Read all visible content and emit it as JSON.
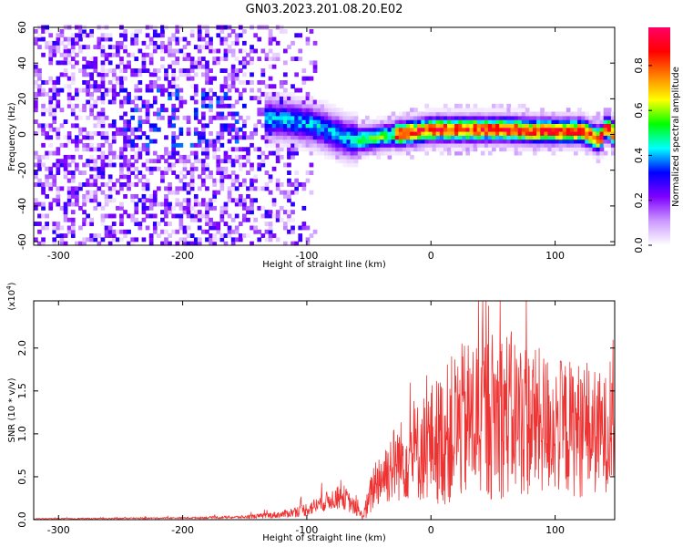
{
  "title": "GN03.2023.201.08.20.E02",
  "chart_data": [
    {
      "type": "heatmap",
      "xlabel": "Height of straight line (km)",
      "ylabel": "Frequency (Hz)",
      "xlim": [
        -320,
        148
      ],
      "ylim": [
        -62,
        60
      ],
      "xticks": [
        -300,
        -200,
        -100,
        0,
        100
      ],
      "yticks": [
        -60,
        -40,
        -20,
        0,
        20,
        40,
        60
      ],
      "colorbar": {
        "label": "Normalized spectral amplitude",
        "range": [
          0.0,
          0.97
        ],
        "ticks": [
          0.0,
          0.2,
          0.4,
          0.6,
          0.8
        ],
        "colormap": [
          "#ffffff",
          "#cc99ff",
          "#7f00ff",
          "#0000ff",
          "#00ffff",
          "#00ff00",
          "#ffff00",
          "#ff8000",
          "#ff0000",
          "#ff0066"
        ]
      },
      "ridge": {
        "description": "dominant frequency trace",
        "x": [
          -130,
          -115,
          -100,
          -90,
          -80,
          -70,
          -60,
          -50,
          -40,
          -30,
          -20,
          -10,
          0,
          20,
          40,
          60,
          80,
          100,
          120,
          135,
          140,
          145
        ],
        "y": [
          8,
          7,
          5,
          3,
          0,
          -3,
          -4,
          -3,
          -2,
          -1,
          0,
          1,
          2,
          2,
          2,
          2,
          1,
          1,
          1,
          -4,
          4,
          0
        ],
        "peak_amplitude": 0.95
      },
      "noise_region": {
        "x": [
          -320,
          -110
        ],
        "y": [
          -60,
          60
        ],
        "amplitude": [
          0.02,
          0.3
        ]
      },
      "grid": false
    },
    {
      "type": "line",
      "xlabel": "Height of straight line (km)",
      "ylabel": "SNR (10 * v/v)",
      "y_multiplier": "(x10",
      "y_multiplier_exp": "4",
      "y_multiplier_close": ")",
      "xlim": [
        -320,
        148
      ],
      "ylim": [
        0,
        2.55
      ],
      "xticks": [
        -300,
        -200,
        -100,
        0,
        100
      ],
      "yticks": [
        0.0,
        0.5,
        1.0,
        1.5,
        2.0
      ],
      "ytick_labels": [
        "0.0",
        "0.5",
        "1.0",
        "1.5",
        "2.0"
      ],
      "color": "#ee3333",
      "series": [
        {
          "x": [
            -320,
            -250,
            -200,
            -150,
            -120,
            -100,
            -90,
            -80,
            -70,
            -60,
            -55,
            -50,
            -45,
            -40,
            -30,
            -20,
            -10,
            0,
            10,
            20,
            40,
            60,
            80,
            100,
            120,
            140,
            148
          ],
          "y": [
            0.01,
            0.015,
            0.02,
            0.03,
            0.06,
            0.12,
            0.18,
            0.24,
            0.26,
            0.12,
            0.04,
            0.2,
            0.45,
            0.5,
            0.65,
            0.72,
            0.8,
            0.9,
            0.95,
            1.1,
            1.2,
            1.25,
            1.15,
            1.1,
            1.05,
            1.0,
            1.05
          ],
          "spread": [
            0.005,
            0.008,
            0.01,
            0.02,
            0.04,
            0.08,
            0.1,
            0.12,
            0.14,
            0.08,
            0.04,
            0.2,
            0.3,
            0.35,
            0.45,
            0.5,
            0.6,
            0.7,
            0.8,
            0.9,
            1.0,
            1.0,
            0.9,
            0.8,
            0.8,
            0.7,
            0.6
          ]
        }
      ],
      "grid": false
    }
  ]
}
